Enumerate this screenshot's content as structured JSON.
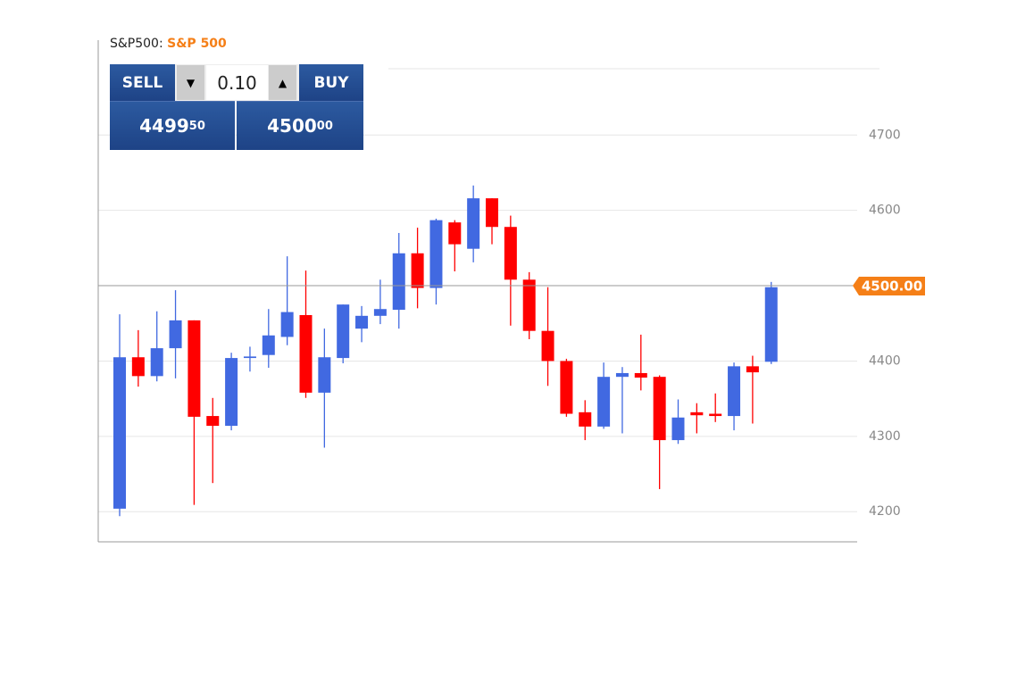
{
  "widget": {
    "instrument": "S&P500:",
    "instrument_name": "S&P 500",
    "sell": "SELL",
    "buy": "BUY",
    "quantity": "0.10",
    "sell_price": {
      "main": "4499",
      "sup": "50"
    },
    "buy_price": {
      "main": "4500",
      "sup": "00"
    }
  },
  "chart_data": {
    "type": "candlestick",
    "open": [
      4204,
      4405,
      4380,
      4417,
      4454,
      4327,
      4314,
      4404,
      4408,
      4432,
      4461,
      4358,
      4404,
      4443,
      4460,
      4468,
      4543,
      4497,
      4584,
      4549,
      4616,
      4578,
      4508,
      4440,
      4400,
      4332,
      4313,
      4379,
      4384,
      4379,
      4295,
      4332,
      4330,
      4327,
      4393,
      4399
    ],
    "high": [
      4462,
      4441,
      4466,
      4494,
      4454,
      4351,
      4411,
      4419,
      4469,
      4539,
      4520,
      4443,
      4475,
      4473,
      4508,
      4570,
      4577,
      4589,
      4587,
      4633,
      4616,
      4593,
      4518,
      4498,
      4403,
      4348,
      4398,
      4392,
      4435,
      4381,
      4349,
      4344,
      4357,
      4398,
      4407,
      4505
    ],
    "low": [
      4194,
      4366,
      4373,
      4377,
      4209,
      4238,
      4308,
      4386,
      4391,
      4421,
      4351,
      4285,
      4397,
      4425,
      4449,
      4443,
      4470,
      4475,
      4519,
      4531,
      4555,
      4447,
      4429,
      4367,
      4326,
      4295,
      4310,
      4304,
      4361,
      4230,
      4290,
      4304,
      4319,
      4308,
      4317,
      4396
    ],
    "close": [
      4405,
      4380,
      4417,
      4454,
      4326,
      4314,
      4404,
      4406,
      4434,
      4465,
      4358,
      4405,
      4475,
      4460,
      4469,
      4543,
      4497,
      4587,
      4555,
      4616,
      4578,
      4508,
      4440,
      4400,
      4330,
      4313,
      4379,
      4384,
      4378,
      4295,
      4325,
      4328,
      4327,
      4393,
      4385,
      4498
    ],
    "up_color": "#4169e1",
    "down_color": "#ff0000",
    "ylim": [
      4160,
      4788
    ],
    "yticks": [
      4200,
      4300,
      4400,
      4500,
      4600,
      4700
    ],
    "grid": true,
    "current_price": {
      "value": 4500,
      "label": "4500.00"
    },
    "current_price_color": "#f57f17"
  }
}
